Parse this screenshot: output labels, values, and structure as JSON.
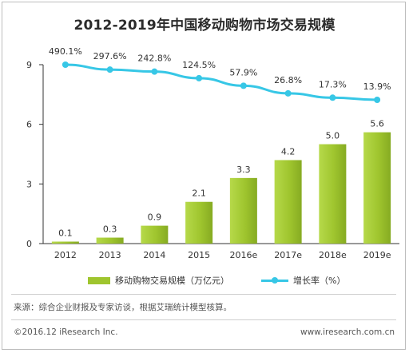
{
  "title": "2012-2019年中国移动购物市场交易规模",
  "chart_data": {
    "type": "bar",
    "categories": [
      "2012",
      "2013",
      "2014",
      "2015",
      "2016e",
      "2017e",
      "2018e",
      "2019e"
    ],
    "series": [
      {
        "name": "移动购物交易规模（万亿元）",
        "type": "bar",
        "values": [
          0.1,
          0.3,
          0.9,
          2.1,
          3.3,
          4.2,
          5.0,
          5.6
        ],
        "labels": [
          "0.1",
          "0.3",
          "0.9",
          "2.1",
          "3.3",
          "4.2",
          "5.0",
          "5.6"
        ],
        "color": "#9fc52e"
      },
      {
        "name": "增长率（%）",
        "type": "line",
        "values": [
          490.1,
          297.6,
          242.8,
          124.5,
          57.9,
          26.8,
          17.3,
          13.9
        ],
        "labels": [
          "490.1%",
          "297.6%",
          "242.8%",
          "124.5%",
          "57.9%",
          "26.8%",
          "17.3%",
          "13.9%"
        ],
        "color": "#37c7e6"
      }
    ],
    "y_axis": {
      "ticks": [
        "0",
        "3",
        "6",
        "9"
      ],
      "ylim": [
        0,
        9
      ]
    },
    "grid": false,
    "legend": "bottom"
  },
  "source": "来源：综合企业财报及专家访谈，根据艾瑞统计模型核算。",
  "footer": {
    "copyright": "©2016.12 iResearch Inc.",
    "website": "www.iresearch.com.cn"
  }
}
